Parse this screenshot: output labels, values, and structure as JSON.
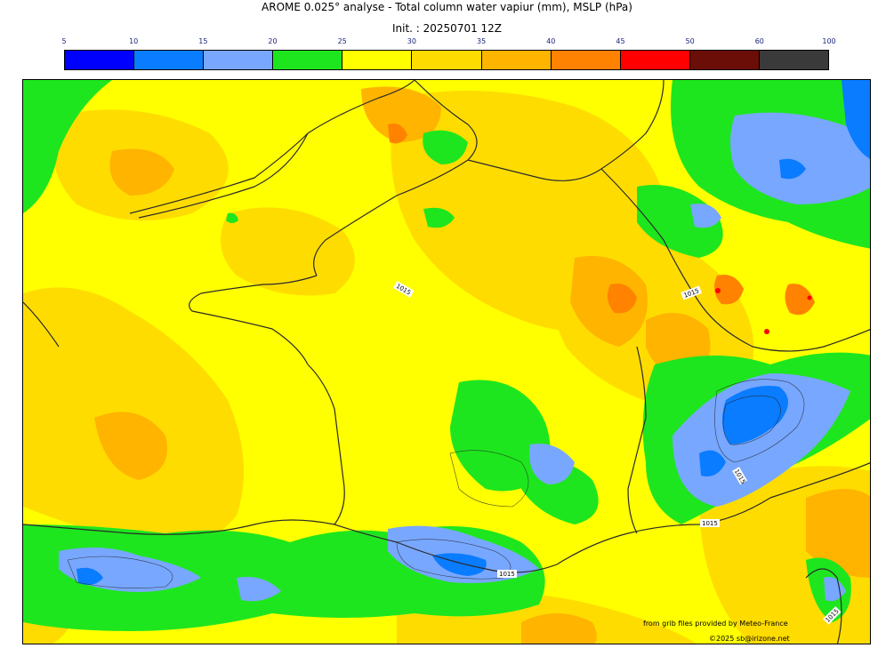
{
  "header": {
    "title": "AROME 0.025° analyse - Total column water vapiur (mm), MSLP (hPa)",
    "init": "Init. : 20250701 12Z"
  },
  "colorbar": {
    "ticks": [
      "5",
      "10",
      "15",
      "20",
      "25",
      "30",
      "35",
      "40",
      "45",
      "50",
      "60",
      "100"
    ],
    "colors": [
      "#0000ff",
      "#0a7cff",
      "#78a7ff",
      "#1ee61e",
      "#ffff00",
      "#ffdc00",
      "#ffb400",
      "#ff8200",
      "#ff0000",
      "#6b0e07",
      "#3a3a3a"
    ]
  },
  "map": {
    "isobar_labels": [
      "1015",
      "1015",
      "1015",
      "1015",
      "1015",
      "1015"
    ]
  },
  "credits": {
    "source": "from grib files provided by Meteo-France",
    "copyright": "©2025 sb@irizone.net"
  }
}
